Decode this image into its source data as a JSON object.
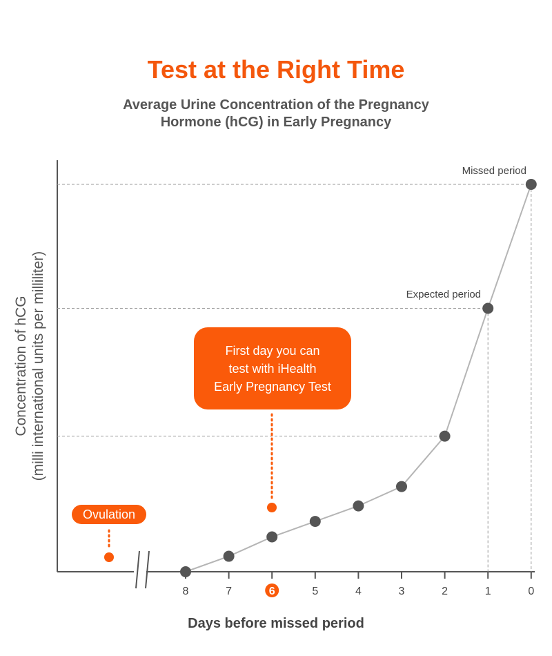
{
  "chart_data": {
    "type": "line",
    "title": "Test at the Right Time",
    "subtitle": [
      "Average Urine Concentration of the Pregnancy",
      "Hormone (hCG) in Early Pregnancy"
    ],
    "xlabel": "Days before missed period",
    "ylabel": [
      "Concentration of hCG",
      "(milli international units per milliliter)"
    ],
    "x": [
      8,
      7,
      6,
      5,
      4,
      3,
      2,
      1,
      0
    ],
    "tick_labels": [
      "8",
      "7",
      "6",
      "5",
      "4",
      "3",
      "2",
      "1",
      "0"
    ],
    "highlighted_tick": "6",
    "y_relative": [
      0,
      4,
      9,
      13,
      17,
      22,
      35,
      68,
      100
    ],
    "ylim": [
      0,
      106
    ],
    "x_axis_reversed": true,
    "axis_break": true,
    "grid": false,
    "annotations": {
      "missed_period": "Missed period",
      "expected_period": "Expected period",
      "first_test_day": "First day you can test with iHealth Early Pregnancy Test",
      "first_test_day_lines": [
        "First day you can",
        "test with iHealth",
        "Early Pregnancy Test"
      ],
      "ovulation": "Ovulation"
    },
    "colors": {
      "accent": "#fa5a0a",
      "points": "#555555",
      "line": "#b5b5b5",
      "axis": "#555555",
      "guides": "#999999"
    }
  }
}
